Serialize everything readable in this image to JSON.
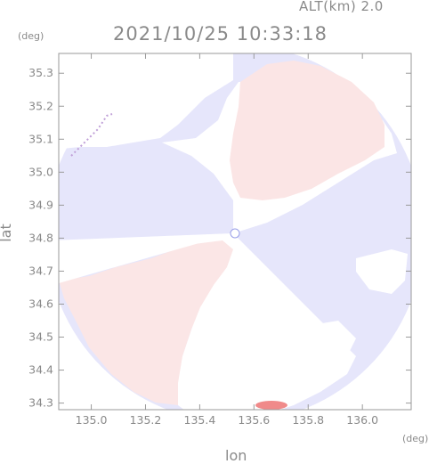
{
  "header": {
    "altitude_label": "ALT(km) 2.0",
    "datetime": "2021/10/25 10:33:18"
  },
  "axes": {
    "y_unit": "(deg)",
    "x_unit": "(deg)",
    "y_label": "lat",
    "x_label": "lon",
    "x_ticks": [
      "135.0",
      "135.2",
      "135.4",
      "135.6",
      "135.8",
      "136.0"
    ],
    "y_ticks": [
      "35.3",
      "35.2",
      "35.1",
      "35.0",
      "34.9",
      "34.8",
      "34.7",
      "34.6",
      "34.5",
      "34.4",
      "34.3"
    ],
    "x_range": [
      134.88,
      136.18
    ],
    "y_range": [
      34.28,
      35.36
    ]
  },
  "radar": {
    "center_lon": 135.525,
    "center_lat": 34.815,
    "colors": {
      "approaching": "#e4e4fb",
      "receding": "#fbe6e6",
      "strong_receding": "#f08080",
      "no_data": "#ffffff",
      "frame": "#9a9a9a"
    }
  }
}
